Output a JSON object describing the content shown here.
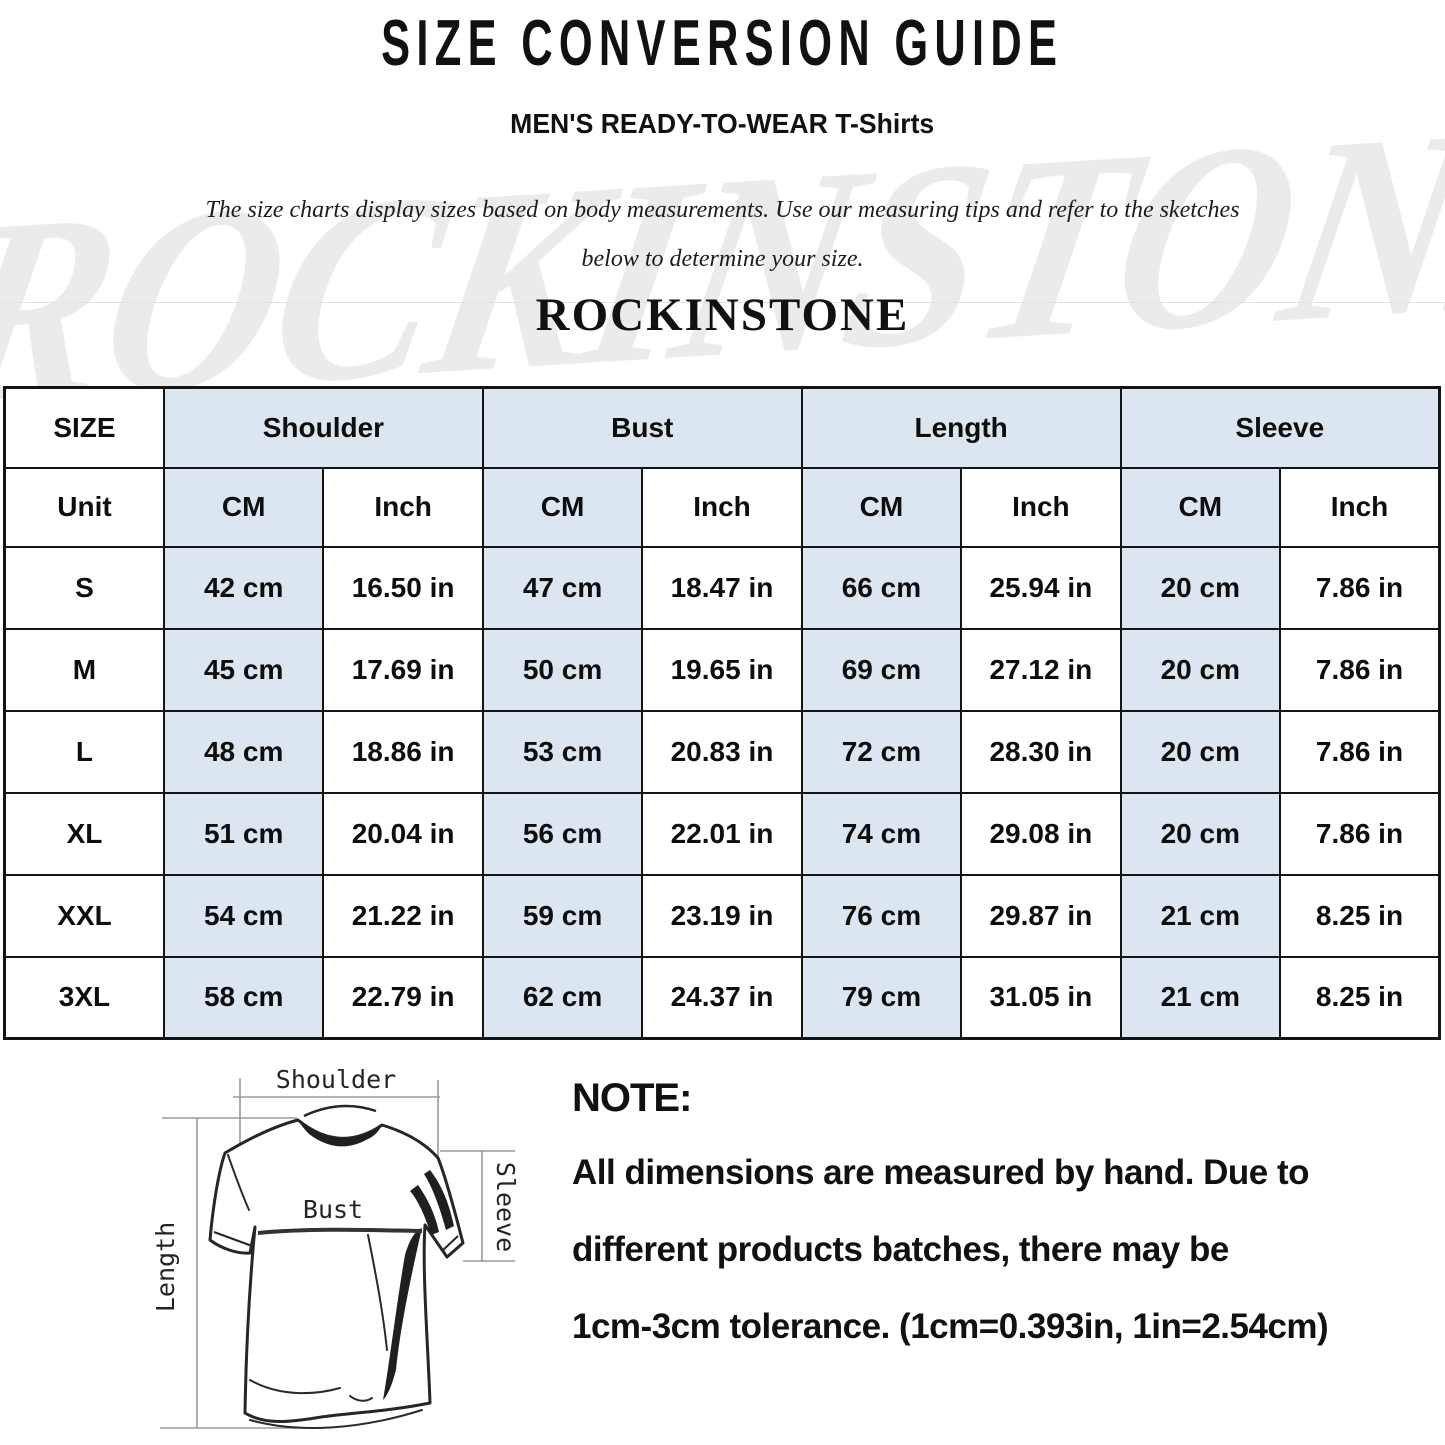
{
  "page": {
    "title": "SIZE CONVERSION GUIDE",
    "subtitle": "MEN'S READY-TO-WEAR T-Shirts",
    "description_line1": "The size charts display sizes based on body measurements. Use our measuring tips and refer to the sketches",
    "description_line2": "below to determine your size.",
    "brand": "ROCKINSTONE",
    "watermark": "ROCKINSTONE"
  },
  "colors": {
    "accent_fill": "#dce6f1",
    "border": "#141414",
    "watermark": "#ebebeb"
  },
  "size_table": {
    "corner_label": "SIZE",
    "unit_label": "Unit",
    "groups": [
      "Shoulder",
      "Bust",
      "Length",
      "Sleeve"
    ],
    "unit_headers": [
      "CM",
      "Inch",
      "CM",
      "Inch",
      "CM",
      "Inch",
      "CM",
      "Inch"
    ],
    "rows": [
      {
        "size": "S",
        "cells": [
          "42 cm",
          "16.50 in",
          "47 cm",
          "18.47 in",
          "66 cm",
          "25.94 in",
          "20 cm",
          "7.86 in"
        ]
      },
      {
        "size": "M",
        "cells": [
          "45 cm",
          "17.69 in",
          "50 cm",
          "19.65 in",
          "69 cm",
          "27.12 in",
          "20 cm",
          "7.86 in"
        ]
      },
      {
        "size": "L",
        "cells": [
          "48 cm",
          "18.86 in",
          "53 cm",
          "20.83 in",
          "72 cm",
          "28.30 in",
          "20 cm",
          "7.86 in"
        ]
      },
      {
        "size": "XL",
        "cells": [
          "51 cm",
          "20.04 in",
          "56 cm",
          "22.01 in",
          "74 cm",
          "29.08 in",
          "20 cm",
          "7.86 in"
        ]
      },
      {
        "size": "XXL",
        "cells": [
          "54 cm",
          "21.22 in",
          "59 cm",
          "23.19 in",
          "76 cm",
          "29.87 in",
          "21 cm",
          "8.25 in"
        ]
      },
      {
        "size": "3XL",
        "cells": [
          "58 cm",
          "22.79 in",
          "62 cm",
          "24.37 in",
          "79 cm",
          "31.05 in",
          "21 cm",
          "8.25 in"
        ]
      }
    ]
  },
  "diagram": {
    "labels": {
      "shoulder": "Shoulder",
      "bust": "Bust",
      "length": "Length",
      "sleeve": "Sleeve"
    }
  },
  "note": {
    "heading": "NOTE:",
    "lines": [
      "All dimensions are measured by hand. Due to",
      "different products batches, there may be",
      "1cm-3cm tolerance. (1cm=0.393in, 1in=2.54cm)"
    ]
  }
}
